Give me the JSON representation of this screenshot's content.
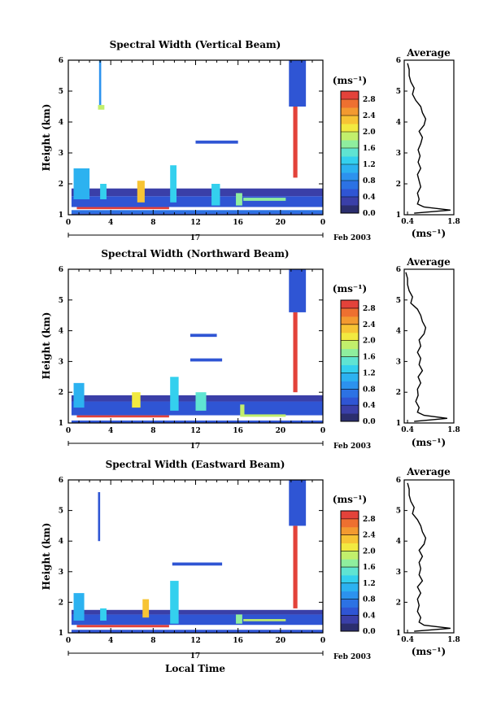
{
  "colors": {
    "scale": [
      "#2b2e6e",
      "#3a3fa8",
      "#2f55d4",
      "#2c72e4",
      "#2c92ee",
      "#2cb2f0",
      "#34d0ee",
      "#5fe4d2",
      "#8fee9e",
      "#c2ef6c",
      "#f2ea40",
      "#f7c434",
      "#f39a30",
      "#ee7030",
      "#e3423a"
    ]
  },
  "chart_data": [
    {
      "type": "heatmap",
      "title": "Spectral Width (Vertical Beam)",
      "ylabel": "Height (km)",
      "xticks": [
        "0",
        "4",
        "8",
        "12",
        "16",
        "20",
        "0"
      ],
      "xlim": [
        0,
        24
      ],
      "yticks": [
        "1",
        "2",
        "3",
        "4",
        "5",
        "6"
      ],
      "ylim": [
        1,
        6
      ],
      "date_day": "17",
      "date_label": "Feb 2003",
      "colorbar": {
        "label": "(ms⁻¹)",
        "ticks": [
          "0.0",
          "0.4",
          "0.8",
          "1.2",
          "1.6",
          "2.0",
          "2.4",
          "2.8"
        ],
        "range": [
          0,
          3.0
        ]
      },
      "average": {
        "title": "Average",
        "xlabel": "(ms⁻¹)",
        "xticks": [
          "0.4",
          "1.8"
        ],
        "xlim": [
          0.3,
          1.8
        ],
        "yticks": [
          "1",
          "2",
          "3",
          "4",
          "5",
          "6"
        ],
        "heights": [
          1.05,
          1.15,
          1.25,
          1.35,
          1.5,
          1.7,
          1.9,
          2.1,
          2.3,
          2.5,
          2.7,
          2.9,
          3.1,
          3.3,
          3.5,
          3.7,
          3.9,
          4.1,
          4.3,
          4.5,
          4.7,
          4.9,
          5.1,
          5.3,
          5.5,
          5.7,
          5.9
        ],
        "values": [
          0.6,
          1.7,
          0.9,
          0.7,
          0.75,
          0.7,
          0.8,
          0.75,
          0.7,
          0.8,
          0.72,
          0.78,
          0.72,
          0.8,
          0.85,
          0.75,
          0.9,
          0.95,
          0.85,
          0.8,
          0.65,
          0.55,
          0.6,
          0.5,
          0.45,
          0.45,
          0.4
        ]
      },
      "blocks": [
        {
          "x0": 0.3,
          "x1": 24.0,
          "h0": 1.0,
          "h1": 1.05,
          "v": 0.5
        },
        {
          "x0": 0.3,
          "x1": 24.0,
          "h0": 1.05,
          "h1": 1.15,
          "v": 0.7
        },
        {
          "x0": 0.8,
          "x1": 9.5,
          "h0": 1.18,
          "h1": 1.25,
          "v": 2.9
        },
        {
          "x0": 0.3,
          "x1": 24.0,
          "h0": 1.25,
          "h1": 1.6,
          "v": 0.5
        },
        {
          "x0": 0.3,
          "x1": 24.0,
          "h0": 1.6,
          "h1": 1.85,
          "v": 0.35
        },
        {
          "x0": 0.5,
          "x1": 2.0,
          "h0": 1.5,
          "h1": 2.5,
          "v": 1.2
        },
        {
          "x0": 3.0,
          "x1": 3.6,
          "h0": 1.5,
          "h1": 2.0,
          "v": 1.4
        },
        {
          "x0": 6.5,
          "x1": 7.2,
          "h0": 1.4,
          "h1": 2.1,
          "v": 2.2
        },
        {
          "x0": 9.6,
          "x1": 10.2,
          "h0": 1.4,
          "h1": 2.6,
          "v": 1.3
        },
        {
          "x0": 13.5,
          "x1": 14.3,
          "h0": 1.3,
          "h1": 2.0,
          "v": 1.4
        },
        {
          "x0": 15.8,
          "x1": 16.4,
          "h0": 1.3,
          "h1": 1.7,
          "v": 1.6
        },
        {
          "x0": 16.5,
          "x1": 20.5,
          "h0": 1.45,
          "h1": 1.55,
          "v": 1.6
        },
        {
          "x0": 21.2,
          "x1": 21.6,
          "h0": 2.2,
          "h1": 4.5,
          "v": 2.85
        },
        {
          "x0": 20.8,
          "x1": 22.4,
          "h0": 4.5,
          "h1": 6.0,
          "v": 0.4
        },
        {
          "x0": 2.8,
          "x1": 3.4,
          "h0": 4.4,
          "h1": 4.55,
          "v": 1.8
        },
        {
          "x0": 2.9,
          "x1": 3.1,
          "h0": 4.55,
          "h1": 6.0,
          "v": 0.9
        },
        {
          "x0": 12.0,
          "x1": 16.0,
          "h0": 3.3,
          "h1": 3.4,
          "v": 0.5
        }
      ]
    },
    {
      "type": "heatmap",
      "title": "Spectral Width (Northward Beam)",
      "ylabel": "Height (km)",
      "xticks": [
        "0",
        "4",
        "8",
        "12",
        "16",
        "20",
        "0"
      ],
      "xlim": [
        0,
        24
      ],
      "yticks": [
        "1",
        "2",
        "3",
        "4",
        "5",
        "6"
      ],
      "ylim": [
        1,
        6
      ],
      "date_day": "17",
      "date_label": "Feb 2003",
      "colorbar": {
        "label": "(ms⁻¹)",
        "ticks": [
          "0.0",
          "0.4",
          "0.8",
          "1.2",
          "1.6",
          "2.0",
          "2.4",
          "2.8"
        ],
        "range": [
          0,
          3.0
        ]
      },
      "average": {
        "title": "Average",
        "xlabel": "(ms⁻¹)",
        "xticks": [
          "0.4",
          "1.8"
        ],
        "xlim": [
          0.3,
          1.8
        ],
        "yticks": [
          "1",
          "2",
          "3",
          "4",
          "5",
          "6"
        ],
        "heights": [
          1.05,
          1.15,
          1.25,
          1.35,
          1.5,
          1.7,
          1.9,
          2.1,
          2.3,
          2.5,
          2.7,
          2.9,
          3.1,
          3.3,
          3.5,
          3.7,
          3.9,
          4.1,
          4.3,
          4.5,
          4.7,
          4.9,
          5.1,
          5.3,
          5.5,
          5.7,
          5.9
        ],
        "values": [
          0.6,
          1.6,
          0.9,
          0.7,
          0.75,
          0.65,
          0.72,
          0.7,
          0.8,
          0.72,
          0.85,
          0.75,
          0.8,
          0.7,
          0.8,
          0.75,
          0.9,
          0.95,
          0.85,
          0.8,
          0.7,
          0.5,
          0.55,
          0.45,
          0.4,
          0.4,
          0.35
        ]
      },
      "blocks": [
        {
          "x0": 0.3,
          "x1": 24.0,
          "h0": 1.0,
          "h1": 1.08,
          "v": 0.5
        },
        {
          "x0": 0.8,
          "x1": 9.5,
          "h0": 1.18,
          "h1": 1.25,
          "v": 2.9
        },
        {
          "x0": 0.3,
          "x1": 24.0,
          "h0": 1.25,
          "h1": 1.7,
          "v": 0.45
        },
        {
          "x0": 0.3,
          "x1": 24.0,
          "h0": 1.7,
          "h1": 1.9,
          "v": 0.3
        },
        {
          "x0": 0.5,
          "x1": 1.5,
          "h0": 1.5,
          "h1": 2.3,
          "v": 1.2
        },
        {
          "x0": 6.0,
          "x1": 6.8,
          "h0": 1.5,
          "h1": 2.0,
          "v": 2.1
        },
        {
          "x0": 9.6,
          "x1": 10.4,
          "h0": 1.4,
          "h1": 2.5,
          "v": 1.3
        },
        {
          "x0": 12.0,
          "x1": 13.0,
          "h0": 1.4,
          "h1": 2.0,
          "v": 1.5
        },
        {
          "x0": 16.2,
          "x1": 16.6,
          "h0": 1.2,
          "h1": 1.6,
          "v": 1.8
        },
        {
          "x0": 16.5,
          "x1": 20.5,
          "h0": 1.2,
          "h1": 1.28,
          "v": 1.8
        },
        {
          "x0": 21.2,
          "x1": 21.6,
          "h0": 2.0,
          "h1": 4.6,
          "v": 2.85
        },
        {
          "x0": 20.8,
          "x1": 22.4,
          "h0": 4.6,
          "h1": 6.0,
          "v": 0.4
        },
        {
          "x0": 11.5,
          "x1": 14.5,
          "h0": 3.0,
          "h1": 3.1,
          "v": 0.5
        },
        {
          "x0": 11.5,
          "x1": 14.0,
          "h0": 3.8,
          "h1": 3.9,
          "v": 0.5
        }
      ]
    },
    {
      "type": "heatmap",
      "title": "Spectral Width (Eastward Beam)",
      "ylabel": "Height (km)",
      "xlabel": "Local Time",
      "xticks": [
        "0",
        "4",
        "8",
        "12",
        "16",
        "20",
        "0"
      ],
      "xlim": [
        0,
        24
      ],
      "yticks": [
        "1",
        "2",
        "3",
        "4",
        "5",
        "6"
      ],
      "ylim": [
        1,
        6
      ],
      "date_day": "17",
      "date_label": "Feb 2003",
      "colorbar": {
        "label": "(ms⁻¹)",
        "ticks": [
          "0.0",
          "0.4",
          "0.8",
          "1.2",
          "1.6",
          "2.0",
          "2.4",
          "2.8"
        ],
        "range": [
          0,
          3.0
        ]
      },
      "average": {
        "title": "Average",
        "xlabel": "(ms⁻¹)",
        "xticks": [
          "0.4",
          "1.8"
        ],
        "xlim": [
          0.3,
          1.8
        ],
        "yticks": [
          "1",
          "2",
          "3",
          "4",
          "5",
          "6"
        ],
        "heights": [
          1.05,
          1.15,
          1.25,
          1.35,
          1.5,
          1.7,
          1.9,
          2.1,
          2.3,
          2.5,
          2.7,
          2.9,
          3.1,
          3.3,
          3.5,
          3.7,
          3.9,
          4.1,
          4.3,
          4.5,
          4.7,
          4.9,
          5.1,
          5.3,
          5.5,
          5.7,
          5.9
        ],
        "values": [
          0.6,
          1.7,
          0.9,
          0.75,
          0.8,
          0.7,
          0.75,
          0.7,
          0.8,
          0.7,
          0.85,
          0.75,
          0.8,
          0.75,
          0.85,
          0.75,
          0.9,
          0.95,
          0.85,
          0.8,
          0.7,
          0.55,
          0.6,
          0.5,
          0.45,
          0.45,
          0.4
        ]
      },
      "blocks": [
        {
          "x0": 0.3,
          "x1": 24.0,
          "h0": 1.0,
          "h1": 1.1,
          "v": 0.5
        },
        {
          "x0": 0.8,
          "x1": 9.5,
          "h0": 1.18,
          "h1": 1.26,
          "v": 2.9
        },
        {
          "x0": 0.3,
          "x1": 24.0,
          "h0": 1.26,
          "h1": 1.6,
          "v": 0.5
        },
        {
          "x0": 0.3,
          "x1": 24.0,
          "h0": 1.6,
          "h1": 1.75,
          "v": 0.35
        },
        {
          "x0": 0.5,
          "x1": 1.5,
          "h0": 1.4,
          "h1": 2.3,
          "v": 1.2
        },
        {
          "x0": 3.0,
          "x1": 3.6,
          "h0": 1.4,
          "h1": 1.8,
          "v": 1.4
        },
        {
          "x0": 7.0,
          "x1": 7.6,
          "h0": 1.5,
          "h1": 2.1,
          "v": 2.3
        },
        {
          "x0": 9.6,
          "x1": 10.4,
          "h0": 1.3,
          "h1": 2.7,
          "v": 1.3
        },
        {
          "x0": 15.8,
          "x1": 16.4,
          "h0": 1.3,
          "h1": 1.6,
          "v": 1.6
        },
        {
          "x0": 16.5,
          "x1": 20.5,
          "h0": 1.38,
          "h1": 1.45,
          "v": 1.8
        },
        {
          "x0": 21.2,
          "x1": 21.6,
          "h0": 1.8,
          "h1": 4.5,
          "v": 2.85
        },
        {
          "x0": 20.8,
          "x1": 22.4,
          "h0": 4.5,
          "h1": 6.0,
          "v": 0.4
        },
        {
          "x0": 9.8,
          "x1": 14.5,
          "h0": 3.2,
          "h1": 3.3,
          "v": 0.5
        },
        {
          "x0": 2.8,
          "x1": 3.0,
          "h0": 4.0,
          "h1": 5.6,
          "v": 0.6
        }
      ]
    }
  ]
}
